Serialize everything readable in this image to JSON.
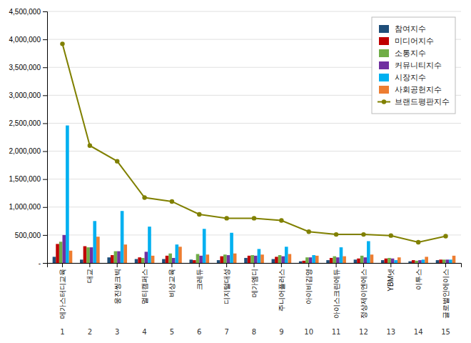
{
  "chart_data": {
    "type": "bar",
    "categories": [
      "메가스터디교육",
      "대교",
      "웅진씽크빅",
      "멀티캠퍼스",
      "비상교육",
      "크레듀",
      "디지털대성",
      "메가엠디",
      "주니어플러스",
      "아이비김영",
      "아이스크린에듀",
      "정상제이엔에스",
      "YBM넷",
      "이투스",
      "글로벌인에이스"
    ],
    "annotations": [
      "1",
      "2",
      "3",
      "4",
      "5",
      "6",
      "7",
      "8",
      "9",
      "10",
      "11",
      "12",
      "13",
      "14",
      "15"
    ],
    "series": [
      {
        "name": "참여지수",
        "type": "bar",
        "color": "#1f4e79",
        "values": [
          110000,
          60000,
          100000,
          70000,
          70000,
          60000,
          50000,
          90000,
          70000,
          30000,
          50000,
          60000,
          50000,
          30000,
          50000
        ]
      },
      {
        "name": "미디어지수",
        "type": "bar",
        "color": "#c00000",
        "values": [
          340000,
          300000,
          140000,
          100000,
          130000,
          50000,
          120000,
          130000,
          110000,
          40000,
          90000,
          80000,
          80000,
          50000,
          60000
        ]
      },
      {
        "name": "소통지수",
        "type": "bar",
        "color": "#70ad47",
        "values": [
          380000,
          280000,
          210000,
          90000,
          170000,
          160000,
          150000,
          140000,
          140000,
          100000,
          120000,
          130000,
          90000,
          40000,
          60000
        ]
      },
      {
        "name": "커뮤니티지수",
        "type": "bar",
        "color": "#7030a0",
        "values": [
          500000,
          280000,
          210000,
          200000,
          90000,
          130000,
          140000,
          130000,
          120000,
          100000,
          100000,
          100000,
          80000,
          50000,
          60000
        ]
      },
      {
        "name": "시장지수",
        "type": "bar",
        "color": "#00b0f0",
        "values": [
          2460000,
          750000,
          930000,
          650000,
          330000,
          610000,
          540000,
          250000,
          290000,
          140000,
          280000,
          390000,
          50000,
          60000,
          60000
        ]
      },
      {
        "name": "사회공헌지수",
        "type": "bar",
        "color": "#ed7d31",
        "values": [
          220000,
          470000,
          330000,
          130000,
          290000,
          150000,
          170000,
          150000,
          160000,
          130000,
          120000,
          150000,
          100000,
          110000,
          130000
        ]
      },
      {
        "name": "브랜드평판지수",
        "type": "line",
        "color": "#808000",
        "marker": "circle",
        "values": [
          3920000,
          2100000,
          1820000,
          1170000,
          1100000,
          870000,
          800000,
          800000,
          760000,
          560000,
          510000,
          510000,
          490000,
          370000,
          480000
        ]
      }
    ],
    "ylim": [
      0,
      4500000
    ],
    "yticks": [
      {
        "value": 0,
        "label": "-"
      },
      {
        "value": 500000,
        "label": "500,000"
      },
      {
        "value": 1000000,
        "label": "1,000,000"
      },
      {
        "value": 1500000,
        "label": "1,500,000"
      },
      {
        "value": 2000000,
        "label": "2,000,000"
      },
      {
        "value": 2500000,
        "label": "2,500,000"
      },
      {
        "value": 3000000,
        "label": "3,000,000"
      },
      {
        "value": 3500000,
        "label": "3,500,000"
      },
      {
        "value": 4000000,
        "label": "4,000,000"
      },
      {
        "value": 4500000,
        "label": "4,500,000"
      }
    ],
    "grid": true,
    "legend": "upper-right"
  }
}
